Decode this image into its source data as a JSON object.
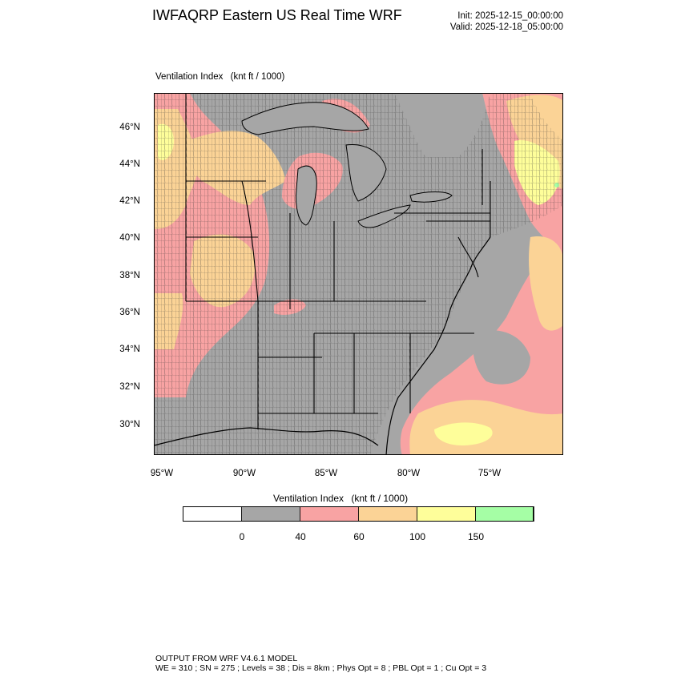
{
  "header": {
    "title": "IWFAQRP Eastern US Real Time WRF",
    "init": "Init: 2025-12-15_00:00:00",
    "valid": "Valid: 2025-12-18_05:00:00"
  },
  "field": {
    "name": "Ventilation Index",
    "units": "(knt ft / 1000)"
  },
  "lat_labels": [
    "46°N",
    "44°N",
    "42°N",
    "40°N",
    "38°N",
    "36°N",
    "34°N",
    "32°N",
    "30°N"
  ],
  "lon_labels": [
    "95°W",
    "90°W",
    "85°W",
    "80°W",
    "75°W"
  ],
  "colorbar": {
    "title": "Ventilation Index",
    "units": "(knt ft / 1000)",
    "colors": [
      "#ffffff",
      "#a6a6a6",
      "#f8a3a3",
      "#fbd396",
      "#fefe9a",
      "#a5fea5"
    ],
    "levels": [
      "0",
      "40",
      "60",
      "100",
      "150"
    ]
  },
  "footer": {
    "line1": "OUTPUT FROM WRF V4.6.1 MODEL",
    "line2": "WE = 310 ; SN = 275 ; Levels = 38 ; Dis = 8km ; Phys Opt = 8 ; PBL Opt = 1 ; Cu Opt = 3"
  }
}
